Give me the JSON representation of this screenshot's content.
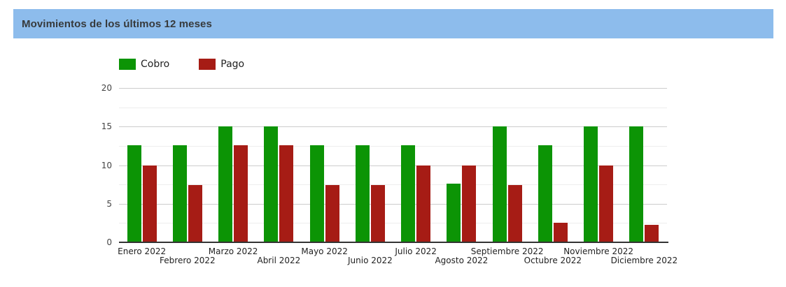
{
  "header": {
    "title": "Movimientos de los últimos 12 meses",
    "background_color": "#8dbcec",
    "text_color": "#373a3c"
  },
  "chart_data": {
    "type": "bar",
    "title": "Movimientos de los últimos 12 meses",
    "categories": [
      "Enero 2022",
      "Febrero 2022",
      "Marzo 2022",
      "Abril 2022",
      "Mayo 2022",
      "Junio 2022",
      "Julio 2022",
      "Agosto 2022",
      "Septiembre 2022",
      "Octubre 2022",
      "Noviembre 2022",
      "Diciembre 2022"
    ],
    "series": [
      {
        "name": "Cobro",
        "color": "#0c9405",
        "values": [
          12.6,
          12.6,
          15,
          15,
          12.6,
          12.6,
          12.6,
          7.6,
          15,
          12.6,
          15,
          15
        ]
      },
      {
        "name": "Pago",
        "color": "#a61c15",
        "values": [
          10,
          7.4,
          12.6,
          12.6,
          7.4,
          7.4,
          10,
          10,
          7.4,
          2.5,
          10,
          2.3
        ]
      }
    ],
    "xlabel": "",
    "ylabel": "",
    "ylim": [
      0,
      20
    ],
    "yticks": [
      0,
      5,
      10,
      15,
      20
    ],
    "minor_gridlines": [
      2.5,
      7.5,
      12.5,
      17.5
    ],
    "grid": true,
    "legend_position": "top",
    "colors": {
      "major_gridline": "#cccccc",
      "minor_gridline": "#ededed",
      "baseline": "#333333",
      "ytick_text": "#444444",
      "xtick_text": "#222222"
    }
  }
}
